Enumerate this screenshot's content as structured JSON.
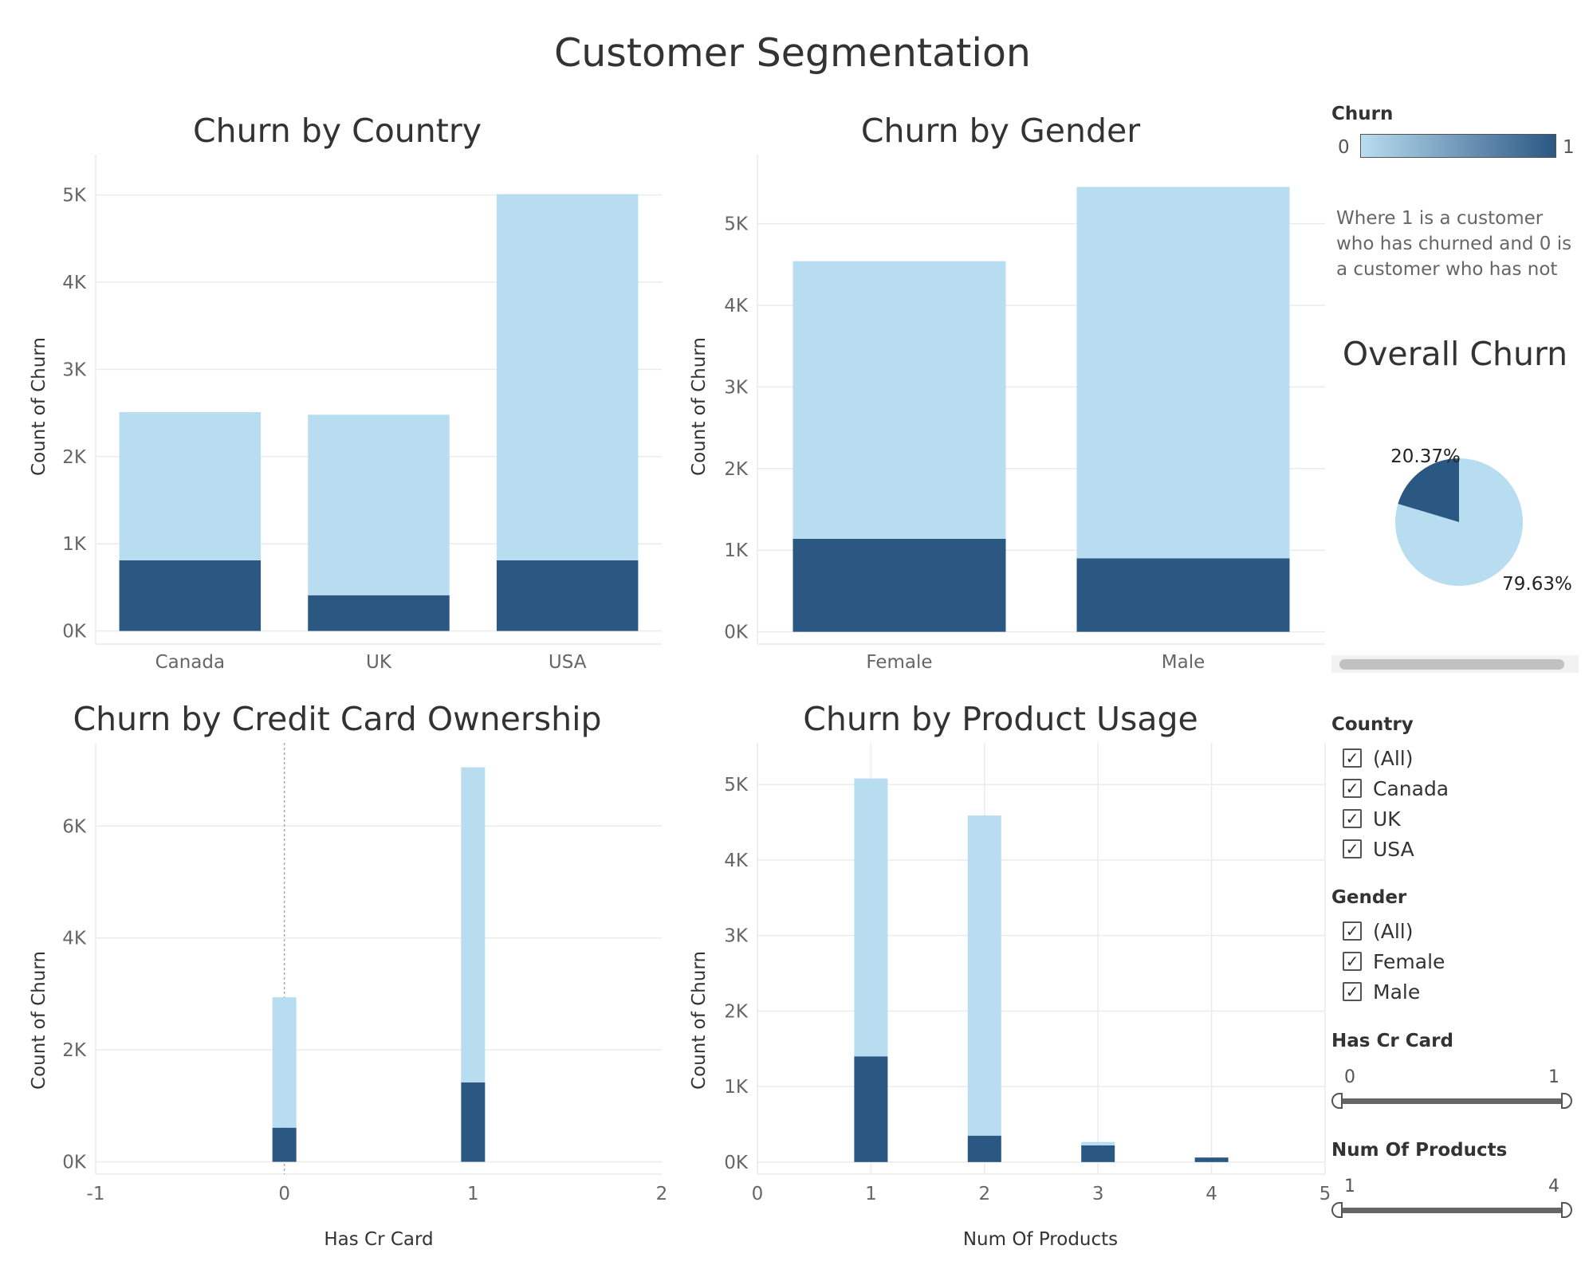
{
  "dashboard": {
    "title": "Customer Segmentation"
  },
  "legend": {
    "title": "Churn",
    "min_label": "0",
    "max_label": "1",
    "color_low": "#b9ddf0",
    "color_high": "#2b5783",
    "note": "Where 1 is a customer who has churned and 0 is a customer who has not"
  },
  "colors": {
    "not_churned": "#b9ddf0",
    "churned": "#2b5783"
  },
  "chart_data": [
    {
      "id": "country",
      "type": "bar",
      "stacked": true,
      "title": "Churn by Country",
      "xlabel": "",
      "ylabel": "Count of Churn",
      "categories": [
        "Canada",
        "UK",
        "USA"
      ],
      "series": [
        {
          "name": "1",
          "values": [
            810,
            410,
            810
          ]
        },
        {
          "name": "0",
          "values": [
            1700,
            2070,
            4200
          ]
        }
      ],
      "ylim": [
        -150,
        5280
      ],
      "yticks": [
        0,
        1000,
        2000,
        3000,
        4000,
        5000
      ],
      "ytick_labels": [
        "0K",
        "1K",
        "2K",
        "3K",
        "4K",
        "5K"
      ],
      "grid": true
    },
    {
      "id": "gender",
      "type": "bar",
      "stacked": true,
      "title": "Churn by Gender",
      "xlabel": "",
      "ylabel": "Count of Churn",
      "categories": [
        "Female",
        "Male"
      ],
      "series": [
        {
          "name": "1",
          "values": [
            1140,
            900
          ]
        },
        {
          "name": "0",
          "values": [
            3400,
            4550
          ]
        }
      ],
      "ylim": [
        -150,
        5650
      ],
      "yticks": [
        0,
        1000,
        2000,
        3000,
        4000,
        5000
      ],
      "ytick_labels": [
        "0K",
        "1K",
        "2K",
        "3K",
        "4K",
        "5K"
      ],
      "grid": true
    },
    {
      "id": "creditcard",
      "type": "bar",
      "stacked": true,
      "title": "Churn by Credit Card Ownership",
      "xlabel": "Has Cr Card",
      "ylabel": "Count of Churn",
      "x": [
        0,
        1
      ],
      "series": [
        {
          "name": "1",
          "values": [
            610,
            1420
          ]
        },
        {
          "name": "0",
          "values": [
            2330,
            5630
          ]
        }
      ],
      "xlim": [
        -1,
        2
      ],
      "xticks": [
        -1,
        0,
        1,
        2
      ],
      "ylim": [
        -220,
        7200
      ],
      "yticks": [
        0,
        2000,
        4000,
        6000
      ],
      "ytick_labels": [
        "0K",
        "2K",
        "4K",
        "6K"
      ],
      "grid": true
    },
    {
      "id": "products",
      "type": "bar",
      "stacked": true,
      "title": "Churn by Product Usage",
      "xlabel": "Num Of Products",
      "ylabel": "Count of Churn",
      "x": [
        1,
        2,
        3,
        4
      ],
      "series": [
        {
          "name": "1",
          "values": [
            1400,
            350,
            220,
            60
          ]
        },
        {
          "name": "0",
          "values": [
            3680,
            4240,
            46,
            0
          ]
        }
      ],
      "xlim": [
        0,
        5
      ],
      "xticks": [
        0,
        1,
        2,
        3,
        4,
        5
      ],
      "ylim": [
        -160,
        5340
      ],
      "yticks": [
        0,
        1000,
        2000,
        3000,
        4000,
        5000
      ],
      "ytick_labels": [
        "0K",
        "1K",
        "2K",
        "3K",
        "4K",
        "5K"
      ],
      "grid": true
    },
    {
      "id": "overall",
      "type": "pie",
      "title": "Overall Churn",
      "slices": [
        {
          "label": "20.37%",
          "value": 20.37,
          "category": "1"
        },
        {
          "label": "79.63%",
          "value": 79.63,
          "category": "0"
        }
      ]
    }
  ],
  "filters": {
    "country": {
      "title": "Country",
      "options": [
        "(All)",
        "Canada",
        "UK",
        "USA"
      ],
      "checked": [
        true,
        true,
        true,
        true
      ]
    },
    "gender": {
      "title": "Gender",
      "options": [
        "(All)",
        "Female",
        "Male"
      ],
      "checked": [
        true,
        true,
        true
      ]
    },
    "has_cr_card": {
      "title": "Has Cr Card",
      "min": "0",
      "max": "1"
    },
    "num_products": {
      "title": "Num Of Products",
      "min": "1",
      "max": "4"
    }
  }
}
